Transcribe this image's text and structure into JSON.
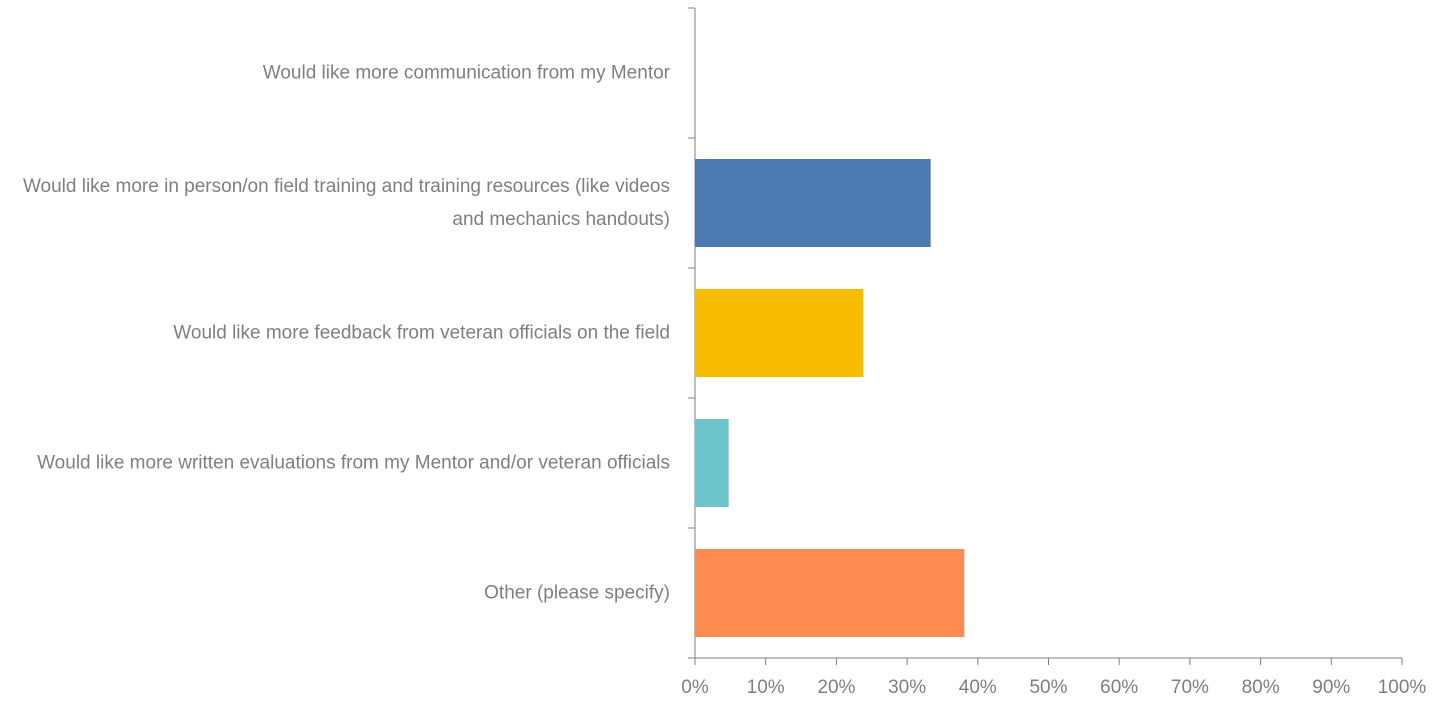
{
  "chart_data": {
    "type": "barh",
    "categories": [
      "Would like more communication from my Mentor",
      "Would like more in person/on field training and training resources (like videos and mechanics handouts)",
      "Would like more feedback from veteran officials on the field",
      "Would like more written evaluations from my Mentor and/or veteran officials",
      "Other (please specify)"
    ],
    "values": [
      0,
      33.33,
      23.81,
      4.76,
      38.1
    ],
    "colors": [
      "#4e7ab4",
      "#4e7ab4",
      "#f8bd00",
      "#6cc5cb",
      "#fe8c52"
    ],
    "xlim": [
      0,
      100
    ],
    "xticks": [
      {
        "value": 0,
        "label": "0%"
      },
      {
        "value": 10,
        "label": "10%"
      },
      {
        "value": 20,
        "label": "20%"
      },
      {
        "value": 30,
        "label": "30%"
      },
      {
        "value": 40,
        "label": "40%"
      },
      {
        "value": 50,
        "label": "50%"
      },
      {
        "value": 60,
        "label": "60%"
      },
      {
        "value": 70,
        "label": "70%"
      },
      {
        "value": 80,
        "label": "80%"
      },
      {
        "value": 90,
        "label": "90%"
      },
      {
        "value": 100,
        "label": "100%"
      }
    ],
    "grid": false
  }
}
